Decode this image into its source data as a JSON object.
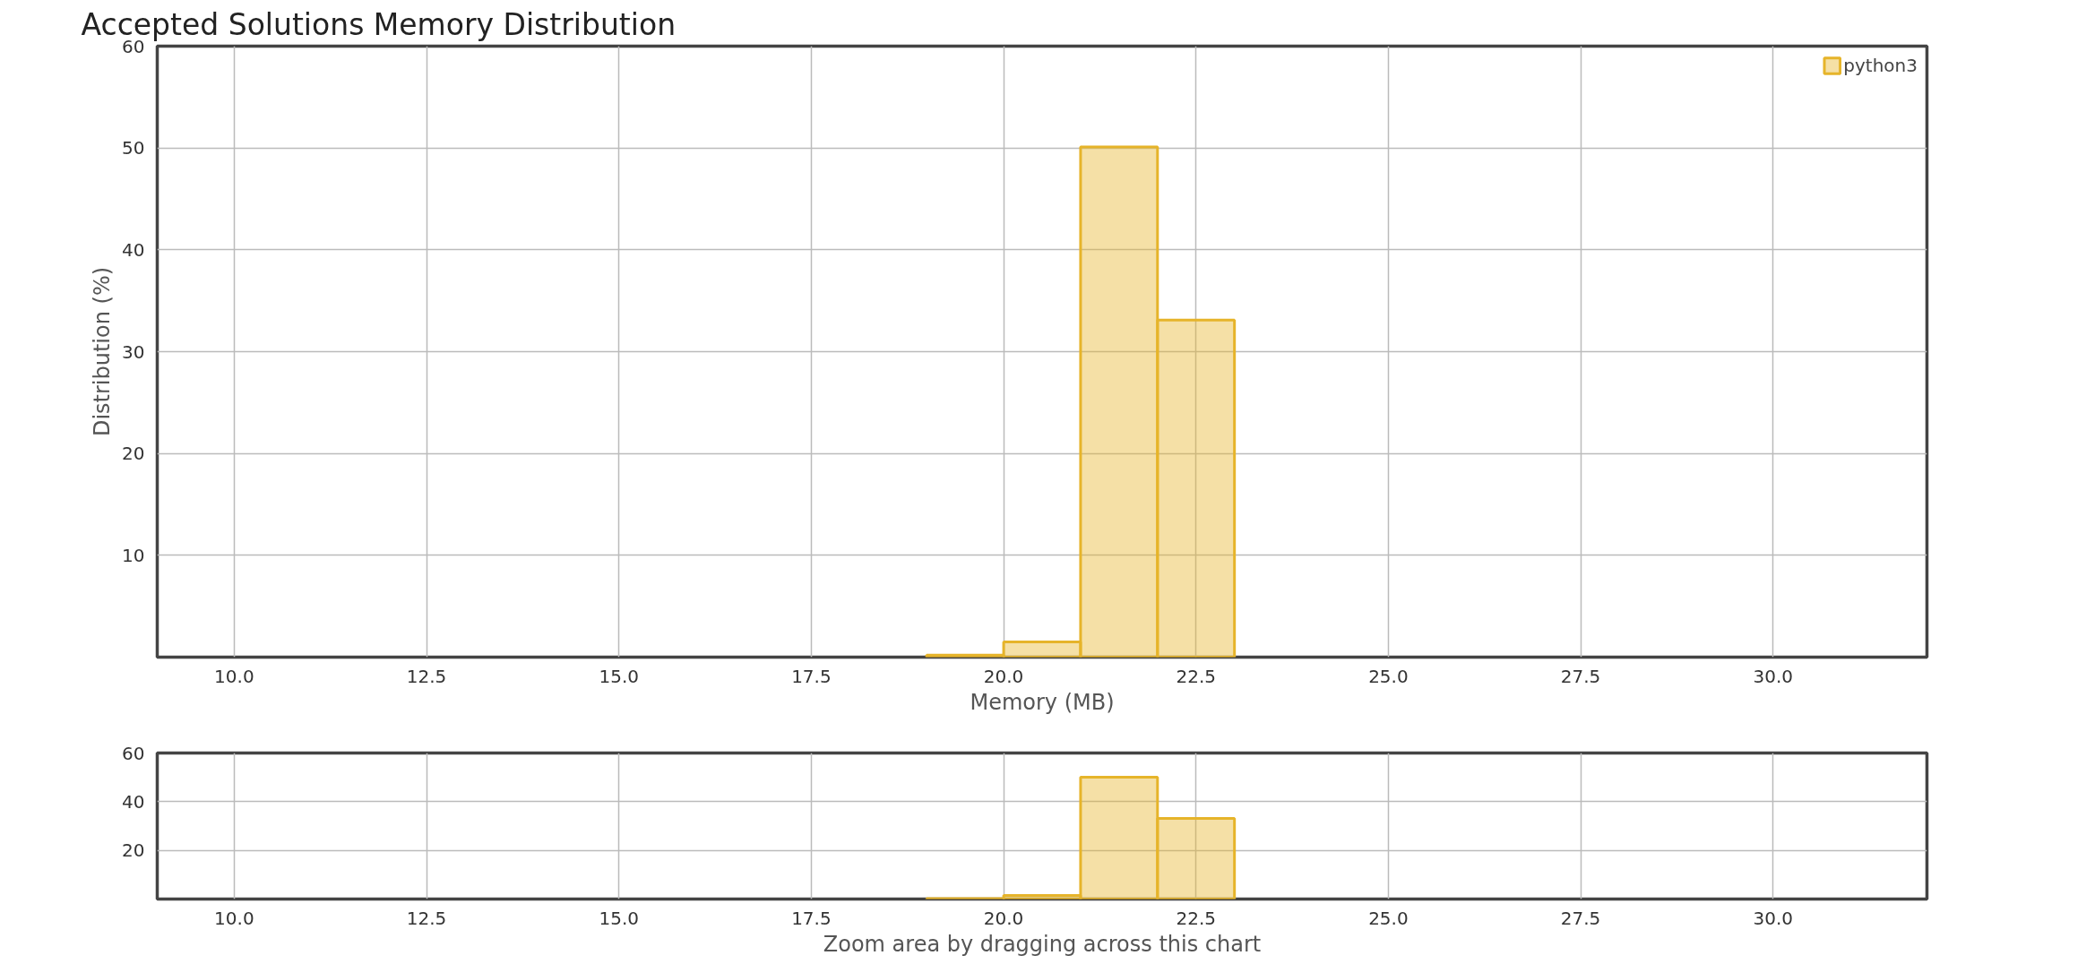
{
  "chart_data": [
    {
      "type": "histogram",
      "title": "Accepted Solutions Memory Distribution",
      "xlabel": "Memory (MB)",
      "ylabel": "Distribution (%)",
      "bins": [
        19,
        20,
        21,
        22,
        23
      ],
      "series": [
        {
          "name": "python3",
          "color": "#e6b42a",
          "values": [
            0.2,
            1.5,
            50.1,
            33.1
          ]
        }
      ],
      "xlim": [
        9,
        32
      ],
      "xticks": [
        {
          "value": 10,
          "label": "10.0"
        },
        12.5,
        {
          "value": 15,
          "label": "15.0"
        },
        17.5,
        {
          "value": 20,
          "label": "20.0"
        },
        22.5,
        {
          "value": 25,
          "label": "25.0"
        },
        27.5,
        {
          "value": 30,
          "label": "30.0"
        }
      ],
      "ylim": [
        0,
        60
      ],
      "yticks": [
        10,
        20,
        30,
        40,
        50,
        60
      ],
      "grid": true,
      "legend": "top right"
    },
    {
      "type": "histogram",
      "xlabel": "Zoom area by dragging across this chart",
      "bins": [
        19,
        20,
        21,
        22,
        23
      ],
      "series": [
        {
          "color": "#e6b42a",
          "values": [
            0.2,
            1.5,
            50.1,
            33.1
          ]
        }
      ],
      "xlim": [
        9,
        32
      ],
      "xticks": [
        {
          "value": 10,
          "label": "10.0"
        },
        12.5,
        {
          "value": 15,
          "label": "15.0"
        },
        17.5,
        {
          "value": 20,
          "label": "20.0"
        },
        22.5,
        {
          "value": 25,
          "label": "25.0"
        },
        27.5,
        {
          "value": 30,
          "label": "30.0"
        }
      ],
      "ylim": [
        0,
        60
      ],
      "yticks": [
        20,
        40,
        60
      ],
      "grid": true
    }
  ]
}
